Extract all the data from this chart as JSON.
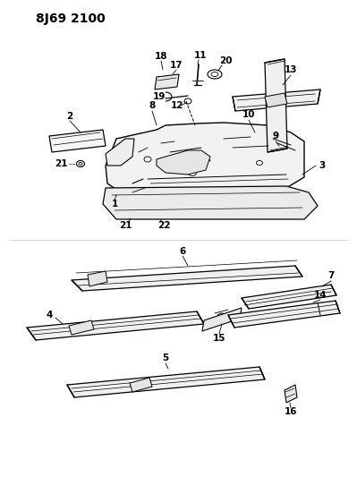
{
  "title": "8J69 2100",
  "bg_color": "#ffffff",
  "line_color": "#000000",
  "label_color": "#000000",
  "title_fontsize": 10,
  "label_fontsize": 7.5,
  "fig_width": 3.99,
  "fig_height": 5.33,
  "dpi": 100
}
